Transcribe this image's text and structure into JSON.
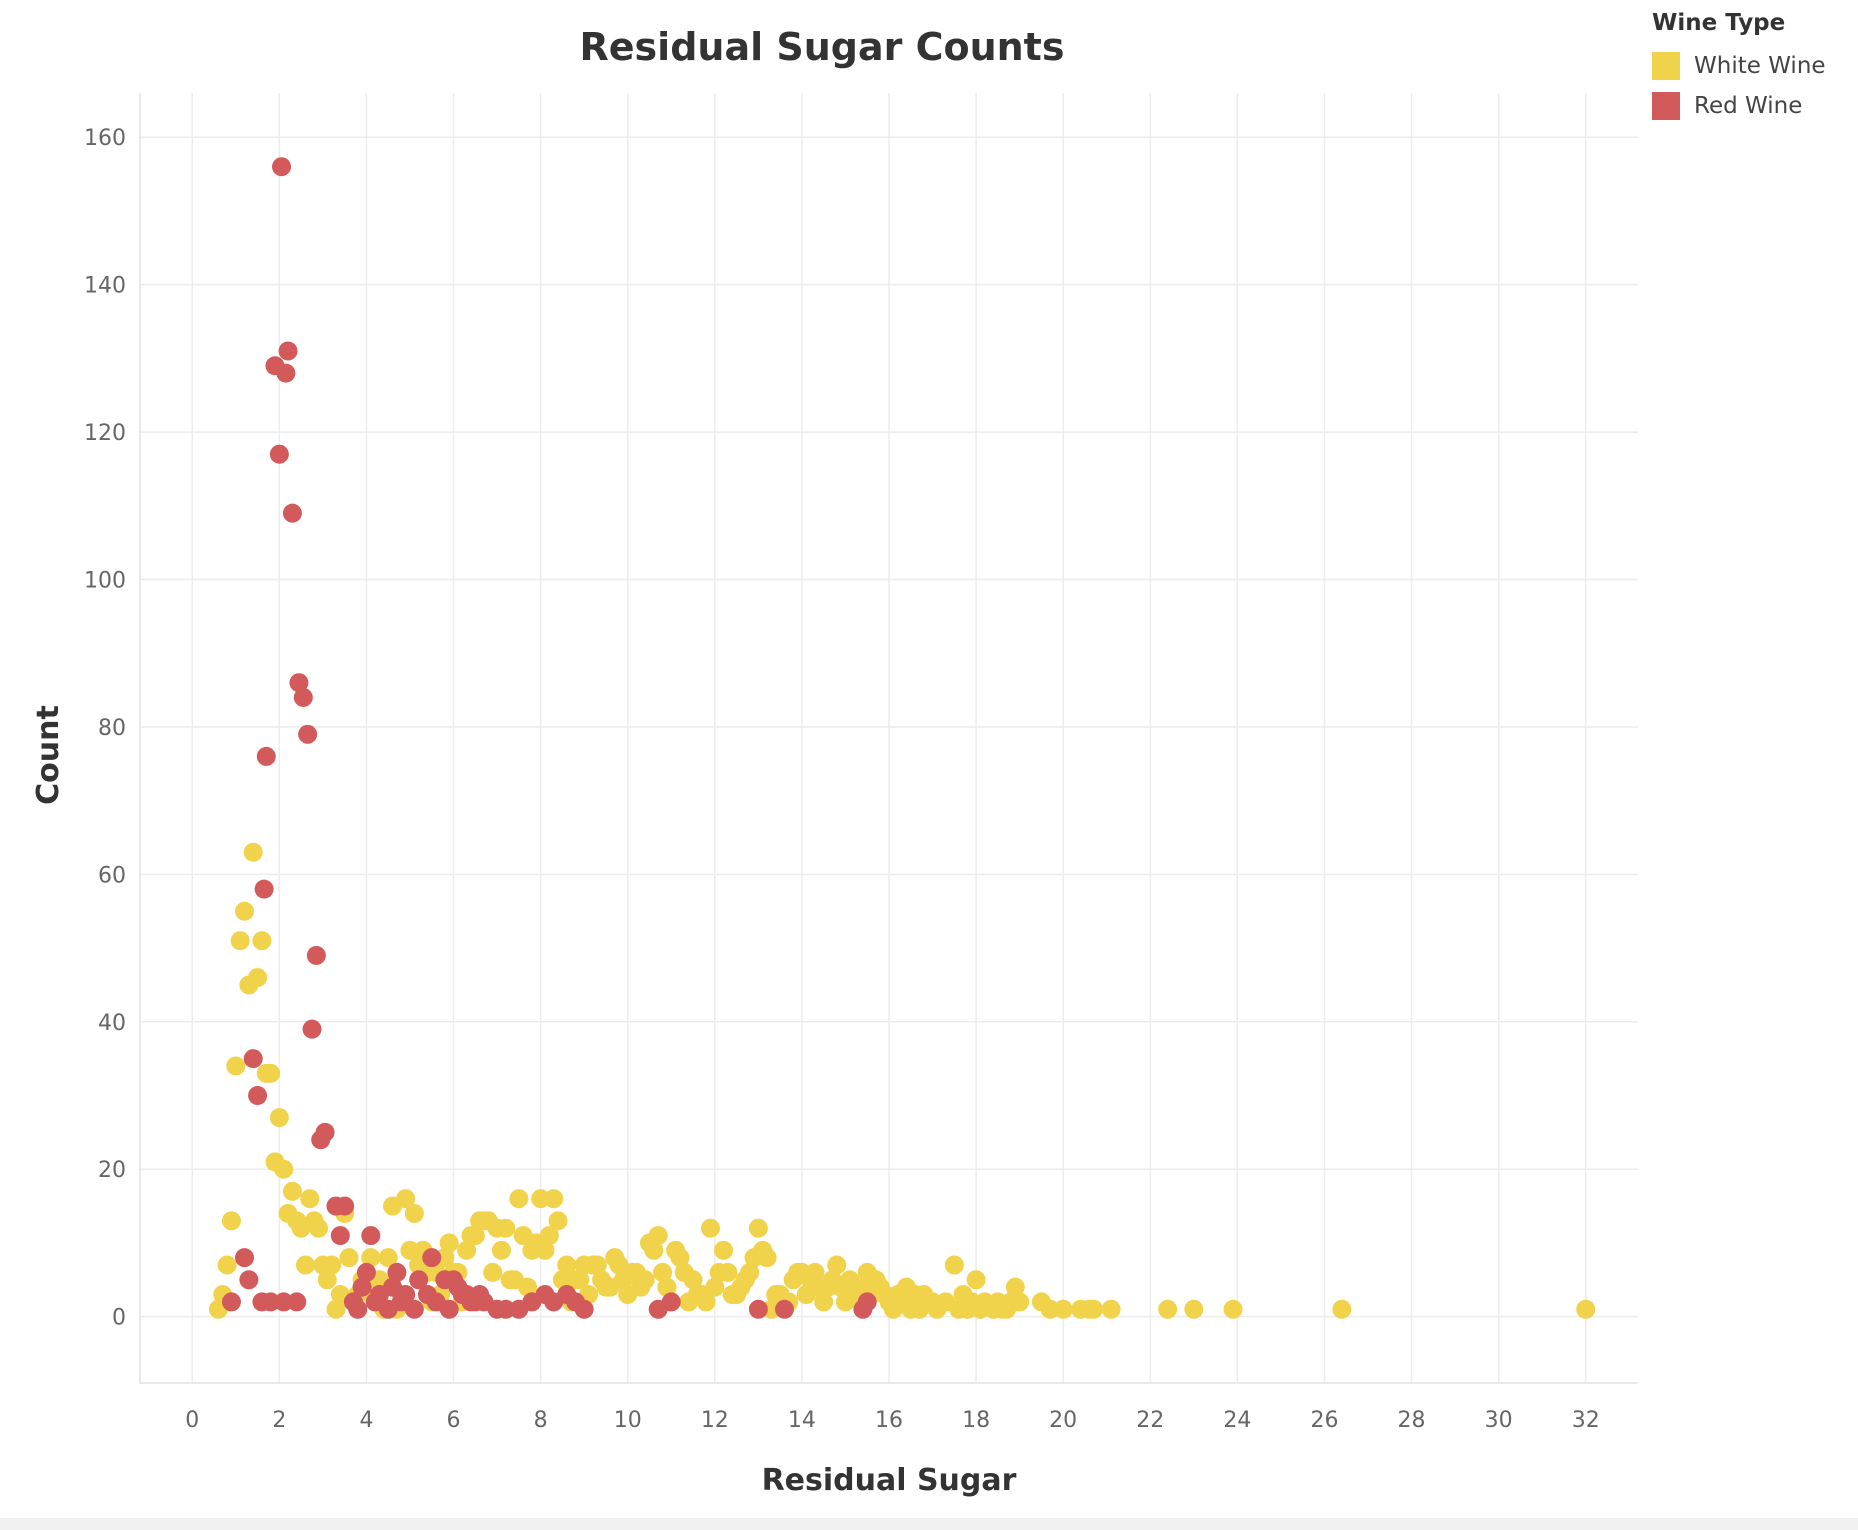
{
  "chart_data": {
    "type": "scatter",
    "title": "Residual Sugar Counts",
    "xlabel": "Residual Sugar",
    "ylabel": "Count",
    "xlim": [
      -1.2,
      33.2
    ],
    "ylim": [
      -9,
      166
    ],
    "xticks": [
      0,
      2,
      4,
      6,
      8,
      10,
      12,
      14,
      16,
      18,
      20,
      22,
      24,
      26,
      28,
      30,
      32
    ],
    "yticks": [
      0,
      20,
      40,
      60,
      80,
      100,
      120,
      140,
      160
    ],
    "grid": true,
    "legend": {
      "title": "Wine Type",
      "position": "top-right"
    },
    "series": [
      {
        "name": "White Wine",
        "color": "#f1d24b",
        "points": [
          [
            0.6,
            1
          ],
          [
            0.7,
            3
          ],
          [
            0.8,
            7
          ],
          [
            0.9,
            13
          ],
          [
            1.0,
            34
          ],
          [
            1.1,
            51
          ],
          [
            1.2,
            55
          ],
          [
            1.3,
            45
          ],
          [
            1.4,
            63
          ],
          [
            1.5,
            46
          ],
          [
            1.6,
            51
          ],
          [
            1.7,
            33
          ],
          [
            1.8,
            33
          ],
          [
            1.9,
            21
          ],
          [
            2.0,
            27
          ],
          [
            2.1,
            20
          ],
          [
            2.2,
            14
          ],
          [
            2.3,
            17
          ],
          [
            2.4,
            13
          ],
          [
            2.5,
            12
          ],
          [
            2.6,
            7
          ],
          [
            2.7,
            16
          ],
          [
            2.8,
            13
          ],
          [
            2.9,
            12
          ],
          [
            3.0,
            7
          ],
          [
            3.1,
            5
          ],
          [
            3.2,
            7
          ],
          [
            3.3,
            1
          ],
          [
            3.4,
            3
          ],
          [
            3.5,
            14
          ],
          [
            3.6,
            8
          ],
          [
            3.7,
            2
          ],
          [
            3.8,
            3
          ],
          [
            3.9,
            5
          ],
          [
            4.0,
            4
          ],
          [
            4.1,
            8
          ],
          [
            4.2,
            2
          ],
          [
            4.3,
            5
          ],
          [
            4.4,
            1
          ],
          [
            4.5,
            8
          ],
          [
            4.6,
            15
          ],
          [
            4.7,
            1
          ],
          [
            4.8,
            3
          ],
          [
            4.9,
            16
          ],
          [
            5.0,
            9
          ],
          [
            5.1,
            14
          ],
          [
            5.2,
            7
          ],
          [
            5.3,
            9
          ],
          [
            5.4,
            6
          ],
          [
            5.5,
            2
          ],
          [
            5.6,
            6
          ],
          [
            5.7,
            3
          ],
          [
            5.8,
            8
          ],
          [
            5.9,
            10
          ],
          [
            6.0,
            6
          ],
          [
            6.1,
            6
          ],
          [
            6.2,
            2
          ],
          [
            6.3,
            9
          ],
          [
            6.4,
            11
          ],
          [
            6.5,
            11
          ],
          [
            6.6,
            13
          ],
          [
            6.7,
            13
          ],
          [
            6.8,
            13
          ],
          [
            6.9,
            6
          ],
          [
            7.0,
            12
          ],
          [
            7.1,
            9
          ],
          [
            7.2,
            12
          ],
          [
            7.3,
            5
          ],
          [
            7.4,
            5
          ],
          [
            7.5,
            16
          ],
          [
            7.6,
            11
          ],
          [
            7.7,
            4
          ],
          [
            7.8,
            9
          ],
          [
            7.9,
            10
          ],
          [
            8.0,
            16
          ],
          [
            8.1,
            9
          ],
          [
            8.2,
            11
          ],
          [
            8.3,
            16
          ],
          [
            8.4,
            13
          ],
          [
            8.5,
            5
          ],
          [
            8.6,
            7
          ],
          [
            8.7,
            2
          ],
          [
            8.8,
            5
          ],
          [
            8.9,
            5
          ],
          [
            9.0,
            7
          ],
          [
            9.1,
            3
          ],
          [
            9.2,
            7
          ],
          [
            9.3,
            7
          ],
          [
            9.4,
            5
          ],
          [
            9.5,
            4
          ],
          [
            9.6,
            4
          ],
          [
            9.7,
            8
          ],
          [
            9.8,
            7
          ],
          [
            9.9,
            5
          ],
          [
            10.0,
            3
          ],
          [
            10.1,
            6
          ],
          [
            10.2,
            6
          ],
          [
            10.3,
            4
          ],
          [
            10.4,
            5
          ],
          [
            10.5,
            10
          ],
          [
            10.6,
            9
          ],
          [
            10.7,
            11
          ],
          [
            10.8,
            6
          ],
          [
            10.9,
            4
          ],
          [
            11.0,
            2
          ],
          [
            11.1,
            9
          ],
          [
            11.2,
            8
          ],
          [
            11.3,
            6
          ],
          [
            11.4,
            2
          ],
          [
            11.5,
            5
          ],
          [
            11.6,
            3
          ],
          [
            11.7,
            3
          ],
          [
            11.8,
            2
          ],
          [
            11.9,
            12
          ],
          [
            12.0,
            4
          ],
          [
            12.1,
            6
          ],
          [
            12.2,
            9
          ],
          [
            12.3,
            6
          ],
          [
            12.4,
            3
          ],
          [
            12.5,
            3
          ],
          [
            12.6,
            4
          ],
          [
            12.7,
            5
          ],
          [
            12.8,
            6
          ],
          [
            12.9,
            8
          ],
          [
            13.0,
            12
          ],
          [
            13.1,
            9
          ],
          [
            13.2,
            8
          ],
          [
            13.3,
            1
          ],
          [
            13.4,
            3
          ],
          [
            13.5,
            3
          ],
          [
            13.6,
            2
          ],
          [
            13.7,
            2
          ],
          [
            13.8,
            5
          ],
          [
            13.9,
            6
          ],
          [
            14.0,
            6
          ],
          [
            14.1,
            3
          ],
          [
            14.2,
            5
          ],
          [
            14.3,
            6
          ],
          [
            14.4,
            4
          ],
          [
            14.5,
            2
          ],
          [
            14.6,
            4
          ],
          [
            14.7,
            5
          ],
          [
            14.8,
            7
          ],
          [
            14.9,
            4
          ],
          [
            15.0,
            2
          ],
          [
            15.1,
            5
          ],
          [
            15.2,
            4
          ],
          [
            15.3,
            3
          ],
          [
            15.4,
            4
          ],
          [
            15.5,
            6
          ],
          [
            15.6,
            3
          ],
          [
            15.7,
            5
          ],
          [
            15.8,
            4
          ],
          [
            15.9,
            3
          ],
          [
            16.0,
            2
          ],
          [
            16.1,
            1
          ],
          [
            16.2,
            3
          ],
          [
            16.3,
            2
          ],
          [
            16.4,
            4
          ],
          [
            16.5,
            1
          ],
          [
            16.6,
            3
          ],
          [
            16.7,
            1
          ],
          [
            16.8,
            3
          ],
          [
            16.9,
            2
          ],
          [
            17.0,
            2
          ],
          [
            17.1,
            1
          ],
          [
            17.3,
            2
          ],
          [
            17.5,
            7
          ],
          [
            17.6,
            1
          ],
          [
            17.7,
            3
          ],
          [
            17.8,
            1
          ],
          [
            17.9,
            2
          ],
          [
            18.0,
            5
          ],
          [
            18.1,
            1
          ],
          [
            18.2,
            2
          ],
          [
            18.4,
            1
          ],
          [
            18.5,
            2
          ],
          [
            18.6,
            1
          ],
          [
            18.7,
            1
          ],
          [
            18.8,
            2
          ],
          [
            18.9,
            4
          ],
          [
            19.0,
            2
          ],
          [
            19.5,
            2
          ],
          [
            19.7,
            1
          ],
          [
            20.0,
            1
          ],
          [
            20.4,
            1
          ],
          [
            20.6,
            1
          ],
          [
            20.7,
            1
          ],
          [
            21.1,
            1
          ],
          [
            22.4,
            1
          ],
          [
            23.0,
            1
          ],
          [
            23.9,
            1
          ],
          [
            26.4,
            1
          ],
          [
            32.0,
            1
          ]
        ]
      },
      {
        "name": "Red Wine",
        "color": "#d35a5a",
        "points": [
          [
            0.9,
            2
          ],
          [
            1.2,
            8
          ],
          [
            1.3,
            5
          ],
          [
            1.4,
            35
          ],
          [
            1.5,
            30
          ],
          [
            1.6,
            2
          ],
          [
            1.65,
            58
          ],
          [
            1.7,
            76
          ],
          [
            1.8,
            2
          ],
          [
            1.9,
            129
          ],
          [
            2.0,
            117
          ],
          [
            2.05,
            156
          ],
          [
            2.1,
            2
          ],
          [
            2.15,
            128
          ],
          [
            2.2,
            131
          ],
          [
            2.3,
            109
          ],
          [
            2.4,
            2
          ],
          [
            2.45,
            86
          ],
          [
            2.55,
            84
          ],
          [
            2.65,
            79
          ],
          [
            2.75,
            39
          ],
          [
            2.85,
            49
          ],
          [
            2.95,
            24
          ],
          [
            3.05,
            25
          ],
          [
            3.3,
            15
          ],
          [
            3.4,
            11
          ],
          [
            3.5,
            15
          ],
          [
            3.7,
            2
          ],
          [
            3.8,
            1
          ],
          [
            3.9,
            4
          ],
          [
            4.0,
            6
          ],
          [
            4.1,
            11
          ],
          [
            4.2,
            2
          ],
          [
            4.3,
            3
          ],
          [
            4.5,
            1
          ],
          [
            4.6,
            4
          ],
          [
            4.7,
            6
          ],
          [
            4.8,
            2
          ],
          [
            4.9,
            3
          ],
          [
            5.1,
            1
          ],
          [
            5.2,
            5
          ],
          [
            5.4,
            3
          ],
          [
            5.5,
            8
          ],
          [
            5.6,
            2
          ],
          [
            5.8,
            5
          ],
          [
            5.9,
            1
          ],
          [
            6.0,
            5
          ],
          [
            6.1,
            4
          ],
          [
            6.2,
            3
          ],
          [
            6.3,
            3
          ],
          [
            6.4,
            2
          ],
          [
            6.5,
            2
          ],
          [
            6.6,
            3
          ],
          [
            6.7,
            2
          ],
          [
            7.0,
            1
          ],
          [
            7.2,
            1
          ],
          [
            7.5,
            1
          ],
          [
            7.8,
            2
          ],
          [
            8.1,
            3
          ],
          [
            8.3,
            2
          ],
          [
            8.6,
            3
          ],
          [
            8.8,
            2
          ],
          [
            9.0,
            1
          ],
          [
            10.7,
            1
          ],
          [
            11.0,
            2
          ],
          [
            13.0,
            1
          ],
          [
            13.6,
            1
          ],
          [
            15.4,
            1
          ],
          [
            15.5,
            2
          ]
        ]
      }
    ]
  }
}
